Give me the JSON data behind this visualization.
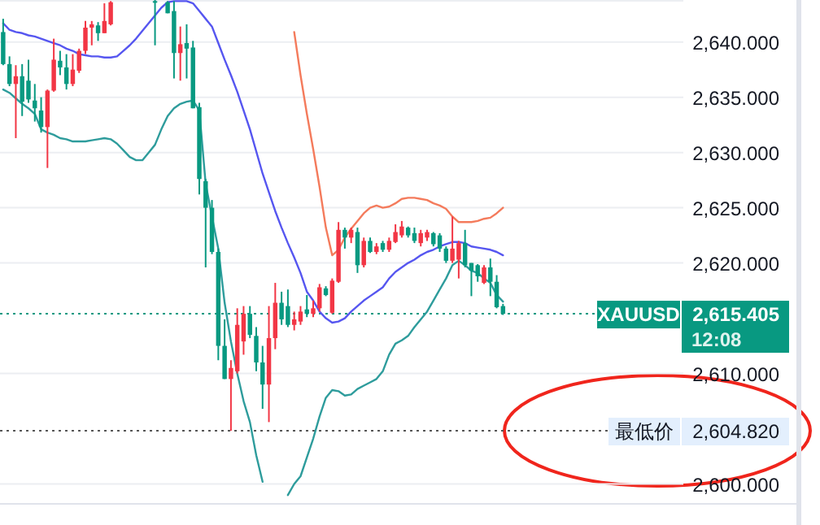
{
  "chart_data": {
    "type": "candlestick",
    "categories": [
      null,
      null,
      null,
      null,
      null,
      null,
      null,
      null,
      null,
      null,
      null,
      null,
      null,
      null,
      null,
      null,
      null,
      null,
      null,
      null,
      null,
      null,
      null,
      null,
      null,
      null,
      null,
      null,
      null,
      null,
      null,
      null,
      null,
      null,
      null,
      null,
      null,
      null,
      null,
      null,
      null,
      null,
      null,
      null,
      null,
      null,
      null,
      null,
      null,
      null,
      null,
      null,
      null,
      null,
      null,
      null,
      null,
      null,
      null,
      null,
      null,
      null,
      null,
      null,
      null,
      null,
      null,
      null,
      null,
      null,
      null,
      null,
      null,
      null,
      null,
      null,
      null,
      null,
      null,
      null,
      null,
      null,
      null,
      null,
      null,
      null,
      null,
      null,
      null,
      null,
      null,
      null,
      null,
      null,
      null,
      null,
      null,
      null,
      null,
      null,
      null,
      null,
      null,
      null,
      null,
      null,
      null,
      null
    ],
    "ohlc": [
      [
        2640.9,
        2642.1,
        2637.9,
        2638.0
      ],
      [
        2638.0,
        2638.7,
        2636.0,
        2636.2
      ],
      [
        2636.2,
        2637.9,
        2631.3,
        2636.9
      ],
      [
        2636.9,
        2638.0,
        2633.3,
        2634.6
      ],
      [
        2636.5,
        2638.4,
        2634.5,
        2634.8
      ],
      [
        2634.7,
        2636.2,
        2632.8,
        2634.0
      ],
      [
        2633.8,
        2635.0,
        2631.8,
        2632.3
      ],
      [
        2632.3,
        2635.7,
        2628.6,
        2635.6
      ],
      [
        2635.6,
        2640.3,
        2635.5,
        2638.4
      ],
      [
        2638.3,
        2639.2,
        2637.0,
        2637.7
      ],
      [
        2637.7,
        2638.9,
        2635.7,
        2636.2
      ],
      [
        2636.2,
        2638.9,
        2636.0,
        2637.5
      ],
      [
        2637.4,
        2639.4,
        2637.2,
        2639.2
      ],
      [
        2639.2,
        2641.9,
        2638.9,
        2641.3
      ],
      [
        2641.3,
        2641.9,
        2639.7,
        2641.6
      ],
      [
        2641.5,
        2641.8,
        2640.1,
        2640.8
      ],
      [
        2640.8,
        2643.5,
        2640.8,
        2641.9
      ],
      [
        2641.6,
        2643.7,
        2641.5,
        2643.6
      ],
      null,
      null,
      null,
      null,
      null,
      null,
      [
        2643.7,
        2643.8,
        2639.7,
        2643.6
      ],
      null,
      [
        2643.6,
        2643.7,
        2642.6,
        2642.6
      ],
      [
        2642.8,
        2643.7,
        2636.7,
        2639.0
      ],
      [
        2639.0,
        2641.4,
        2636.5,
        2639.8
      ],
      [
        2639.9,
        2641.6,
        2636.7,
        2639.4
      ],
      [
        2639.5,
        2640.1,
        2634.0,
        2634.0
      ],
      [
        2634.1,
        2634.5,
        2626.2,
        2627.6
      ],
      [
        2627.4,
        2627.6,
        2619.6,
        2625.0
      ],
      [
        2625.0,
        2625.7,
        2620.8,
        2621.0
      ],
      [
        2621.0,
        2621.3,
        2611.2,
        2612.5
      ],
      [
        2612.5,
        2614.9,
        2609.5,
        2609.5
      ],
      [
        2609.5,
        2611.2,
        2604.82,
        2610.5
      ],
      [
        2610.2,
        2615.9,
        2610.0,
        2614.4
      ],
      [
        2612.9,
        2616.1,
        2611.7,
        2615.4
      ],
      [
        2615.4,
        2616.1,
        2613.2,
        2613.5
      ],
      [
        2613.4,
        2614.2,
        2610.2,
        2611.0
      ],
      [
        2611.0,
        2612.5,
        2606.8,
        2609.0
      ],
      [
        2609.0,
        2616.1,
        2605.6,
        2613.2
      ],
      [
        2613.2,
        2618.2,
        2612.2,
        2616.4
      ],
      [
        2616.4,
        2617.4,
        2614.4,
        2614.9
      ],
      [
        2616.1,
        2617.6,
        2614.2,
        2614.4
      ],
      [
        2614.4,
        2615.6,
        2613.9,
        2614.9
      ],
      [
        2614.7,
        2616.1,
        2614.4,
        2615.6
      ],
      [
        2615.8,
        2617.1,
        2615.1,
        2615.4
      ],
      [
        2615.4,
        2616.6,
        2615.1,
        2615.9
      ],
      [
        2615.9,
        2618.1,
        2615.6,
        2617.8
      ],
      [
        2617.7,
        2617.9,
        2617.0,
        2617.1
      ],
      [
        2615.5,
        2618.6,
        2615.4,
        2618.4
      ],
      [
        2618.3,
        2623.7,
        2618.2,
        2623.0
      ],
      [
        2623.0,
        2623.2,
        2621.3,
        2622.3
      ],
      [
        2622.3,
        2623.2,
        2621.8,
        2623.0
      ],
      [
        2622.8,
        2623.2,
        2619.1,
        2619.8
      ],
      [
        2619.8,
        2622.3,
        2619.6,
        2622.0
      ],
      [
        2622.0,
        2622.3,
        2620.9,
        2621.0
      ],
      [
        2621.0,
        2621.8,
        2620.8,
        2621.5
      ],
      [
        2621.8,
        2622.0,
        2621.0,
        2621.2
      ],
      [
        2621.2,
        2622.3,
        2621.0,
        2622.0
      ],
      [
        2621.9,
        2623.5,
        2621.8,
        2622.8
      ],
      [
        2622.5,
        2623.8,
        2622.3,
        2623.3
      ],
      [
        2623.2,
        2623.3,
        2622.3,
        2622.5
      ],
      [
        2622.7,
        2623.2,
        2621.8,
        2622.0
      ],
      [
        2621.8,
        2623.0,
        2621.5,
        2622.7
      ],
      [
        2622.3,
        2623.0,
        2622.0,
        2622.8
      ],
      [
        2622.7,
        2622.8,
        2621.5,
        2621.7
      ],
      [
        2622.5,
        2622.7,
        2621.0,
        2621.3
      ],
      [
        2621.3,
        2621.5,
        2620.0,
        2620.2
      ],
      [
        2620.2,
        2624.2,
        2620.0,
        2621.3
      ],
      [
        2620.3,
        2622.0,
        2618.6,
        2621.8
      ],
      [
        2621.8,
        2623.0,
        2619.6,
        2619.8
      ],
      [
        2620.0,
        2620.0,
        2617.0,
        2619.3
      ],
      [
        2619.8,
        2619.9,
        2618.3,
        2618.8
      ],
      [
        2618.2,
        2619.8,
        2618.1,
        2619.6
      ],
      [
        2619.6,
        2620.4,
        2617.0,
        2618.3
      ],
      [
        2618.3,
        2618.9,
        2615.9,
        2616.0
      ],
      [
        2616.1,
        2616.3,
        2615.3,
        2615.405
      ],
      null,
      null,
      null,
      null,
      null,
      null,
      null,
      null,
      null,
      null,
      null,
      null,
      null,
      null,
      null,
      null,
      null,
      null,
      null,
      null,
      null,
      null,
      null,
      null,
      null,
      null,
      null,
      null
    ],
    "colors": [
      "#089981",
      "#089981",
      "#f23645",
      "#089981",
      "#089981",
      "#089981",
      "#089981",
      "#f23645",
      "#f23645",
      "#089981",
      "#089981",
      "#f23645",
      "#f23645",
      "#f23645",
      "#f23645",
      "#089981",
      "#f23645",
      "#f23645",
      null,
      null,
      null,
      null,
      null,
      null,
      "#089981",
      null,
      "#089981",
      "#089981",
      "#f23645",
      "#089981",
      "#089981",
      "#089981",
      "#089981",
      "#089981",
      "#089981",
      "#089981",
      "#f23645",
      "#f23645",
      "#f23645",
      "#089981",
      "#089981",
      "#089981",
      "#f23645",
      "#f23645",
      "#089981",
      "#089981",
      "#f23645",
      "#f23645",
      "#089981",
      "#f23645",
      "#f23645",
      "#089981",
      "#f23645",
      "#f23645",
      "#089981",
      "#f23645",
      "#089981",
      "#f23645",
      "#089981",
      "#f23645",
      "#089981",
      "#f23645",
      "#f23645",
      "#f23645",
      "#089981",
      "#089981",
      "#f23645",
      "#f23645",
      "#089981",
      "#089981",
      "#089981",
      "#f23645",
      "#f23645",
      "#089981",
      "#089981",
      "#089981",
      "#f23645",
      "#089981",
      "#089981",
      "#089981",
      null,
      null,
      null,
      null,
      null,
      null,
      null,
      null,
      null,
      null,
      null,
      null,
      null,
      null,
      null,
      null,
      null,
      null,
      null,
      null,
      null,
      null,
      null,
      null,
      null,
      null,
      null,
      null
    ],
    "series": [
      {
        "type": "line",
        "color": "#f47b5c",
        "values": [
          null,
          null,
          null,
          null,
          null,
          null,
          null,
          null,
          null,
          null,
          null,
          null,
          null,
          null,
          null,
          null,
          null,
          null,
          null,
          null,
          null,
          null,
          null,
          null,
          null,
          null,
          null,
          null,
          null,
          null,
          null,
          null,
          null,
          null,
          null,
          null,
          null,
          null,
          null,
          null,
          null,
          null,
          null,
          null,
          null,
          null,
          2640.9,
          2637.0,
          2633.5,
          2630.3,
          2626.9,
          2623.2,
          2620.7,
          2621.2,
          2622.3,
          2623.1,
          2623.8,
          2624.5,
          2625.0,
          2625.2,
          2625.0,
          2625.1,
          2625.4,
          2625.8,
          2625.9,
          2625.9,
          2625.8,
          2625.7,
          2625.4,
          2625.2,
          2624.9,
          2624.2,
          2623.7,
          2623.7,
          2623.7,
          2623.8,
          2624.0,
          2624.1,
          2624.5,
          2625.0,
          null,
          null,
          null,
          null,
          null,
          null,
          null,
          null,
          null,
          null,
          null,
          null,
          null,
          null,
          null,
          null,
          null,
          null,
          null,
          null,
          null,
          null,
          null,
          null,
          null,
          null,
          null,
          null
        ]
      },
      {
        "type": "line",
        "color": "#5656f0",
        "values": [
          2641.7,
          2641.1,
          2640.9,
          2640.8,
          2640.6,
          2640.5,
          2640.3,
          2640.1,
          2639.9,
          2639.7,
          2639.4,
          2639.2,
          2638.9,
          2638.8,
          2638.7,
          2638.7,
          2638.6,
          2638.6,
          2638.7,
          2639.2,
          2639.7,
          2640.3,
          2641.0,
          2641.7,
          2642.4,
          2643.1,
          2643.6,
          2643.7,
          2643.7,
          2643.7,
          2643.5,
          2642.8,
          2642.1,
          2641.4,
          2639.9,
          2638.4,
          2637.0,
          2635.5,
          2633.8,
          2632.1,
          2630.1,
          2628.1,
          2626.4,
          2624.7,
          2623.2,
          2621.8,
          2620.5,
          2619.1,
          2617.4,
          2616.6,
          2615.6,
          2615.0,
          2614.6,
          2614.7,
          2615.0,
          2615.6,
          2616.1,
          2616.6,
          2617.0,
          2617.4,
          2617.8,
          2618.6,
          2619.2,
          2619.6,
          2620.0,
          2620.3,
          2620.7,
          2621.0,
          2621.2,
          2621.5,
          2621.7,
          2621.9,
          2621.9,
          2621.8,
          2621.5,
          2621.4,
          2621.3,
          2621.2,
          2621.0,
          2620.7,
          null,
          null,
          null,
          null,
          null,
          null,
          null,
          null,
          null,
          null,
          null,
          null,
          null,
          null,
          null,
          null,
          null,
          null,
          null,
          null,
          null,
          null,
          null,
          null,
          null,
          null,
          null,
          null
        ]
      },
      {
        "type": "line",
        "color": "#2e9c9c",
        "values": [
          2635.7,
          2635.4,
          2634.9,
          2634.4,
          2634.0,
          2633.5,
          2632.1,
          2631.8,
          2631.6,
          2631.3,
          2631.2,
          2631.0,
          2631.0,
          2631.0,
          2631.1,
          2631.2,
          2631.3,
          2631.2,
          2630.8,
          2630.2,
          2629.6,
          2629.3,
          2629.3,
          2630.0,
          2630.7,
          2632.1,
          2633.3,
          2634.0,
          2634.4,
          2634.6,
          2634.7,
          2633.8,
          2627.2,
          2624.2,
          2621.3,
          2616.4,
          2612.9,
          2610.0,
          2607.5,
          2605.6,
          2602.6,
          2600.2,
          null,
          null,
          null,
          2599.0,
          2600.0,
          2600.7,
          2602.4,
          2604.1,
          2606.1,
          2607.8,
          2608.5,
          2608.4,
          2608.0,
          2608.1,
          2608.6,
          2608.9,
          2609.2,
          2609.5,
          2610.2,
          2611.7,
          2612.7,
          2613.0,
          2613.4,
          2614.2,
          2614.9,
          2615.6,
          2616.6,
          2617.6,
          2618.6,
          2619.8,
          2620.2,
          2619.8,
          2619.3,
          2619.1,
          2618.6,
          2618.2,
          2617.1,
          2616.5,
          null,
          null,
          null,
          null,
          null,
          null,
          null,
          null,
          null,
          null,
          null,
          null,
          null,
          null,
          null,
          null,
          null,
          null,
          null,
          null,
          null,
          null,
          null,
          null,
          null,
          null,
          null,
          null
        ]
      }
    ],
    "ylim": [
      2598.2,
      2643.8
    ],
    "yticks": [
      {
        "value": 2600,
        "label": "2,600.000"
      },
      {
        "value": 2604.82,
        "label": "2,604.820"
      },
      {
        "value": 2610,
        "label": "2,610.000"
      },
      {
        "value": 2615.405,
        "label": "2,615.405"
      },
      {
        "value": 2620,
        "label": "2,620.000"
      },
      {
        "value": 2625,
        "label": "2,625.000"
      },
      {
        "value": 2630,
        "label": "2,630.000"
      },
      {
        "value": 2635,
        "label": "2,635.000"
      },
      {
        "value": 2640,
        "label": "2,640.000"
      }
    ],
    "tick_labels": "y",
    "grid": "y",
    "ref_lines": [
      {
        "axis": "y",
        "value": 2615.405,
        "label": "XAUUSD",
        "color": "#089981",
        "line_style": "dotted"
      },
      {
        "axis": "y",
        "value": 2604.82,
        "label": "最低价",
        "color": "#555555",
        "line_style": "dotted"
      }
    ],
    "annotations": [
      "12:08"
    ]
  }
}
